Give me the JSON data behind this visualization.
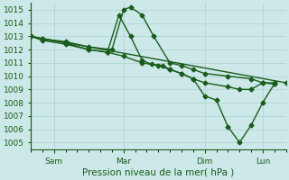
{
  "title": "",
  "xlabel": "Pression niveau de la mer( hPa )",
  "bg_color": "#cce8e8",
  "grid_color": "#a8cccc",
  "line_color": "#1a5c1a",
  "ylim": [
    1004.5,
    1015.5
  ],
  "yticks": [
    1005,
    1006,
    1007,
    1008,
    1009,
    1010,
    1011,
    1012,
    1013,
    1014,
    1015
  ],
  "xtick_labels": [
    "Sam",
    "Mar",
    "Dim",
    "Lun"
  ],
  "xtick_positions": [
    1.0,
    4.0,
    7.5,
    10.0
  ],
  "xlim": [
    0.0,
    11.0
  ],
  "lines": [
    {
      "x": [
        0.0,
        11.0
      ],
      "y": [
        1013.0,
        1009.5
      ],
      "markers_x": [],
      "markers_y": []
    },
    {
      "x": [
        0.0,
        0.5,
        1.5,
        2.5,
        3.5,
        4.0,
        4.3,
        4.8,
        5.3,
        6.0,
        6.5,
        7.0,
        7.5,
        8.5,
        9.5,
        10.0,
        10.5
      ],
      "y": [
        1013.0,
        1012.8,
        1012.6,
        1012.2,
        1012.0,
        1015.0,
        1015.2,
        1014.6,
        1013.0,
        1011.0,
        1010.8,
        1010.5,
        1010.2,
        1010.0,
        1009.8,
        1009.5,
        1009.4
      ]
    },
    {
      "x": [
        0.0,
        0.5,
        1.5,
        2.5,
        3.3,
        3.8,
        4.3,
        4.8,
        5.2,
        5.7,
        6.0,
        6.5,
        7.0,
        7.5,
        8.5,
        9.0,
        9.5,
        10.0,
        10.5
      ],
      "y": [
        1013.0,
        1012.7,
        1012.4,
        1012.0,
        1011.8,
        1014.6,
        1013.0,
        1011.2,
        1010.9,
        1010.8,
        1010.5,
        1010.2,
        1009.8,
        1009.5,
        1009.2,
        1009.0,
        1009.0,
        1009.5,
        1009.5
      ]
    },
    {
      "x": [
        0.0,
        0.5,
        1.5,
        2.5,
        3.3,
        4.0,
        4.8,
        5.5,
        6.0,
        6.5,
        7.0,
        7.5,
        8.0,
        8.5,
        9.0,
        9.5,
        10.0,
        10.5
      ],
      "y": [
        1013.0,
        1012.8,
        1012.5,
        1012.0,
        1011.8,
        1011.5,
        1011.0,
        1010.8,
        1010.5,
        1010.2,
        1009.8,
        1008.5,
        1008.2,
        1006.2,
        1005.0,
        1006.3,
        1008.0,
        1009.4
      ]
    }
  ],
  "marker": "D",
  "marker_size": 2.5,
  "line_width": 1.0,
  "font_size_ticks": 6.5,
  "font_size_xlabel": 7.5,
  "tick_color": "#1a5c1a",
  "spine_color": "#1a5c1a"
}
